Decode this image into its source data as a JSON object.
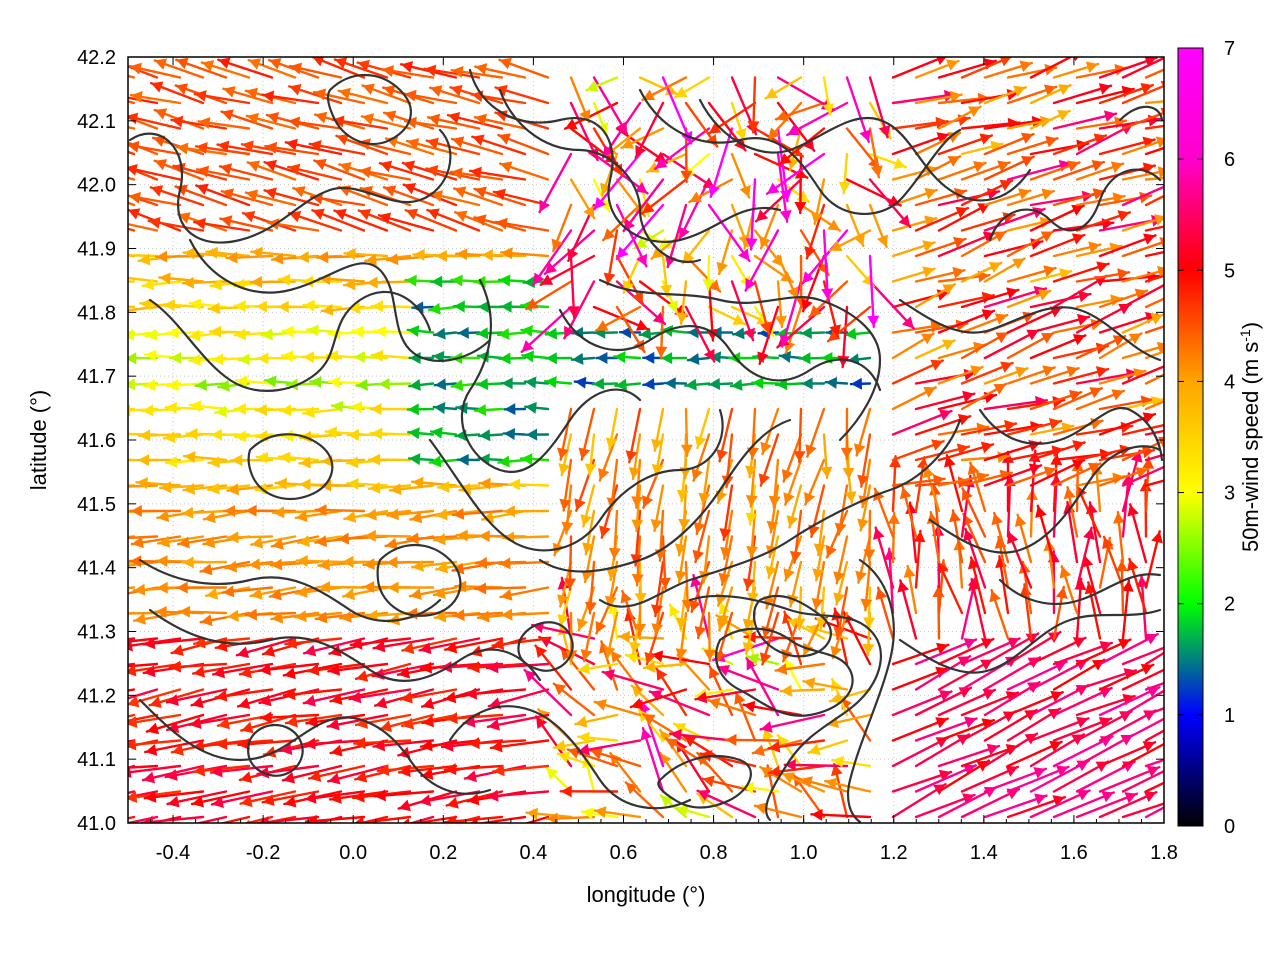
{
  "chart_data": {
    "type": "vector-field",
    "title": "",
    "xlabel": "longitude (°)",
    "ylabel": "latitude (°)",
    "xlim": [
      -0.5,
      1.8
    ],
    "ylim": [
      41.0,
      42.2
    ],
    "xticks": [
      "-0.4",
      "-0.2",
      "0.0",
      "0.2",
      "0.4",
      "0.6",
      "0.8",
      "1.0",
      "1.2",
      "1.4",
      "1.6",
      "1.8"
    ],
    "xtick_values": [
      -0.4,
      -0.2,
      0.0,
      0.2,
      0.4,
      0.6,
      0.8,
      1.0,
      1.2,
      1.4,
      1.6,
      1.8
    ],
    "yticks": [
      "41.0",
      "41.1",
      "41.2",
      "41.3",
      "41.4",
      "41.5",
      "41.6",
      "41.7",
      "41.8",
      "41.9",
      "42.0",
      "42.1",
      "42.2"
    ],
    "ytick_values": [
      41.0,
      41.1,
      41.2,
      41.3,
      41.4,
      41.5,
      41.6,
      41.7,
      41.8,
      41.9,
      42.0,
      42.1,
      42.2
    ],
    "grid": true,
    "colorbar": {
      "label_main": "50m-wind speed (m s",
      "label_sup": "-1",
      "label_end": ")",
      "range": [
        0,
        7
      ],
      "ticks": [
        "0",
        "1",
        "2",
        "3",
        "4",
        "5",
        "6",
        "7"
      ],
      "tick_values": [
        0,
        1,
        2,
        3,
        4,
        5,
        6,
        7
      ],
      "palette": [
        "#000000",
        "#0000ff",
        "#00ff00",
        "#ffff00",
        "#ffa500",
        "#ff0000",
        "#ff00ff"
      ]
    },
    "regimes": [
      {
        "region": "west, lat 41.0-41.3",
        "direction_deg": 190,
        "speed": 5.5
      },
      {
        "region": "west, lat 41.3-41.5",
        "direction_deg": 185,
        "speed": 4.3
      },
      {
        "region": "west, lat 41.5-41.9",
        "direction_deg": 180,
        "speed": 3.0
      },
      {
        "region": "west, lat 41.9-42.2",
        "direction_deg": 165,
        "speed": 5.0
      },
      {
        "region": "center, lat 41.6-41.8",
        "direction_deg": 180,
        "speed": 1.5
      },
      {
        "region": "center-south",
        "direction_deg": 250,
        "speed": 4.0
      },
      {
        "region": "east, lat 41.5-42.2",
        "direction_deg": 15,
        "speed": 4.8
      },
      {
        "region": "southeast coast",
        "direction_deg": 25,
        "speed": 6.0
      },
      {
        "region": "east inland, lat 41.2-41.5",
        "direction_deg": 95,
        "speed": 5.2
      }
    ],
    "contours": "terrain elevation isolines (dark gray)"
  }
}
